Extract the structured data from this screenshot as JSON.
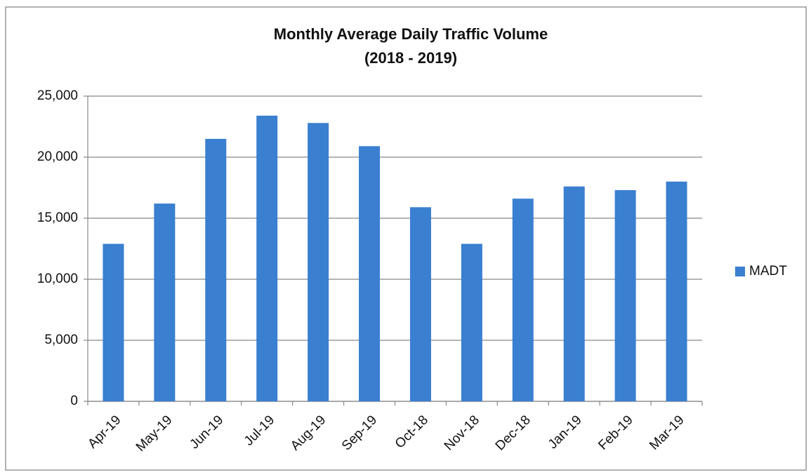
{
  "chart_data": {
    "type": "bar",
    "title": "Monthly Average Daily Traffic Volume",
    "subtitle": "(2018 - 2019)",
    "categories": [
      "Apr-19",
      "May-19",
      "Jun-19",
      "Jul-19",
      "Aug-19",
      "Sep-19",
      "Oct-18",
      "Nov-18",
      "Dec-18",
      "Jan-19",
      "Feb-19",
      "Mar-19"
    ],
    "series": [
      {
        "name": "MADT",
        "color": "#3a7fd0",
        "values": [
          12900,
          16200,
          21500,
          23400,
          22800,
          20900,
          15900,
          12900,
          16600,
          17600,
          17300,
          18000
        ]
      }
    ],
    "ylim": [
      0,
      25000
    ],
    "yticks": [
      0,
      {
        "value": 5000,
        "label": "5,000"
      },
      {
        "value": 10000,
        "label": "10,000"
      },
      {
        "value": 15000,
        "label": "15,000"
      },
      {
        "value": 20000,
        "label": "20,000"
      },
      {
        "value": 25000,
        "label": "25,000"
      }
    ],
    "grid": true,
    "legend": "right"
  }
}
